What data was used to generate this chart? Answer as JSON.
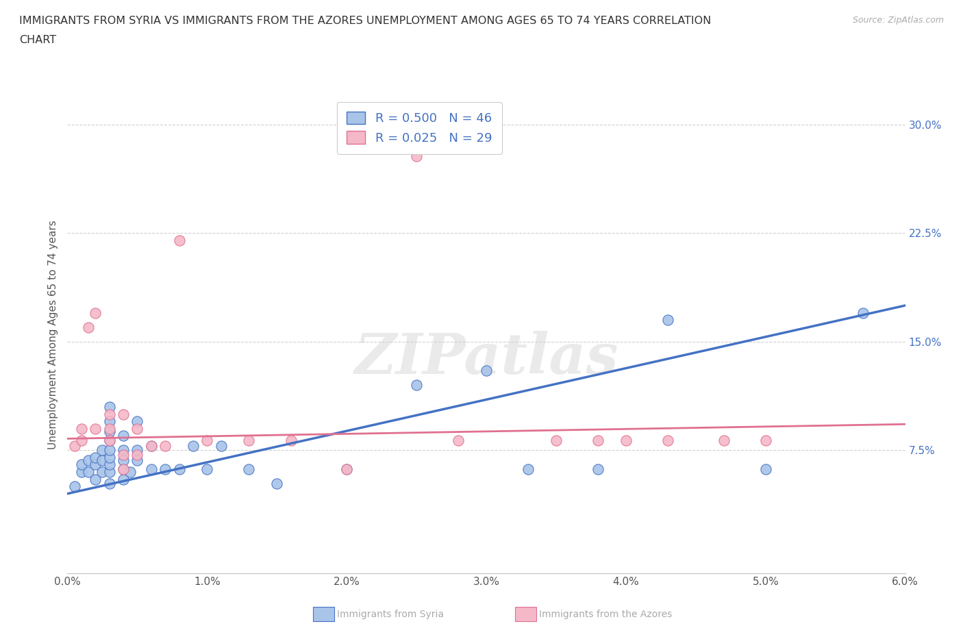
{
  "title_line1": "IMMIGRANTS FROM SYRIA VS IMMIGRANTS FROM THE AZORES UNEMPLOYMENT AMONG AGES 65 TO 74 YEARS CORRELATION",
  "title_line2": "CHART",
  "source": "Source: ZipAtlas.com",
  "ylabel": "Unemployment Among Ages 65 to 74 years",
  "xlim": [
    0.0,
    0.06
  ],
  "ylim": [
    -0.01,
    0.32
  ],
  "xticks": [
    0.0,
    0.01,
    0.02,
    0.03,
    0.04,
    0.05,
    0.06
  ],
  "xticklabels": [
    "0.0%",
    "1.0%",
    "2.0%",
    "3.0%",
    "4.0%",
    "5.0%",
    "6.0%"
  ],
  "yticks": [
    0.075,
    0.15,
    0.225,
    0.3
  ],
  "yticklabels": [
    "7.5%",
    "15.0%",
    "22.5%",
    "30.0%"
  ],
  "legend_label1": "R = 0.500   N = 46",
  "legend_label2": "R = 0.025   N = 29",
  "syria_color": "#a8c4e8",
  "azores_color": "#f5b8c8",
  "syria_line_color": "#4472c4",
  "azores_line_color": "#e07090",
  "watermark_text": "ZIPatlas",
  "background_color": "#ffffff",
  "grid_color": "#d0d0d0",
  "syria_scatter_x": [
    0.0005,
    0.001,
    0.001,
    0.0015,
    0.0015,
    0.002,
    0.002,
    0.002,
    0.0025,
    0.0025,
    0.0025,
    0.003,
    0.003,
    0.003,
    0.003,
    0.003,
    0.003,
    0.003,
    0.003,
    0.003,
    0.004,
    0.004,
    0.004,
    0.004,
    0.004,
    0.0045,
    0.005,
    0.005,
    0.005,
    0.006,
    0.006,
    0.007,
    0.008,
    0.009,
    0.01,
    0.011,
    0.013,
    0.015,
    0.02,
    0.025,
    0.03,
    0.033,
    0.038,
    0.043,
    0.05,
    0.057
  ],
  "syria_scatter_y": [
    0.05,
    0.06,
    0.065,
    0.06,
    0.068,
    0.055,
    0.065,
    0.07,
    0.06,
    0.068,
    0.075,
    0.052,
    0.06,
    0.065,
    0.07,
    0.075,
    0.082,
    0.088,
    0.095,
    0.105,
    0.055,
    0.062,
    0.068,
    0.075,
    0.085,
    0.06,
    0.068,
    0.075,
    0.095,
    0.062,
    0.078,
    0.062,
    0.062,
    0.078,
    0.062,
    0.078,
    0.062,
    0.052,
    0.062,
    0.12,
    0.13,
    0.062,
    0.062,
    0.165,
    0.062,
    0.17
  ],
  "azores_scatter_x": [
    0.0005,
    0.001,
    0.001,
    0.0015,
    0.002,
    0.002,
    0.003,
    0.003,
    0.003,
    0.004,
    0.004,
    0.004,
    0.005,
    0.005,
    0.006,
    0.007,
    0.008,
    0.01,
    0.013,
    0.016,
    0.02,
    0.025,
    0.028,
    0.035,
    0.038,
    0.04,
    0.043,
    0.047,
    0.05
  ],
  "azores_scatter_y": [
    0.078,
    0.082,
    0.09,
    0.16,
    0.09,
    0.17,
    0.082,
    0.09,
    0.1,
    0.062,
    0.072,
    0.1,
    0.072,
    0.09,
    0.078,
    0.078,
    0.22,
    0.082,
    0.082,
    0.082,
    0.062,
    0.278,
    0.082,
    0.082,
    0.082,
    0.082,
    0.082,
    0.082,
    0.082
  ],
  "syria_trendline_x": [
    0.0,
    0.06
  ],
  "syria_trendline_y": [
    0.045,
    0.175
  ],
  "azores_trendline_x": [
    0.0,
    0.06
  ],
  "azores_trendline_y": [
    0.083,
    0.093
  ]
}
